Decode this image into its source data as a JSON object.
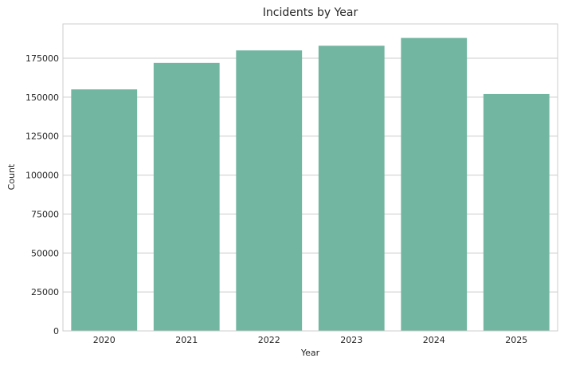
{
  "chart_data": {
    "type": "bar",
    "title": "Incidents by Year",
    "xlabel": "Year",
    "ylabel": "Count",
    "categories": [
      "2020",
      "2021",
      "2022",
      "2023",
      "2024",
      "2025"
    ],
    "values": [
      155000,
      172000,
      180000,
      183000,
      188000,
      152000
    ],
    "ylim": [
      0,
      197000
    ],
    "yticks": [
      0,
      25000,
      50000,
      75000,
      100000,
      125000,
      150000,
      175000
    ],
    "bar_color": "#72b6a1",
    "grid": true,
    "legend": "none"
  }
}
